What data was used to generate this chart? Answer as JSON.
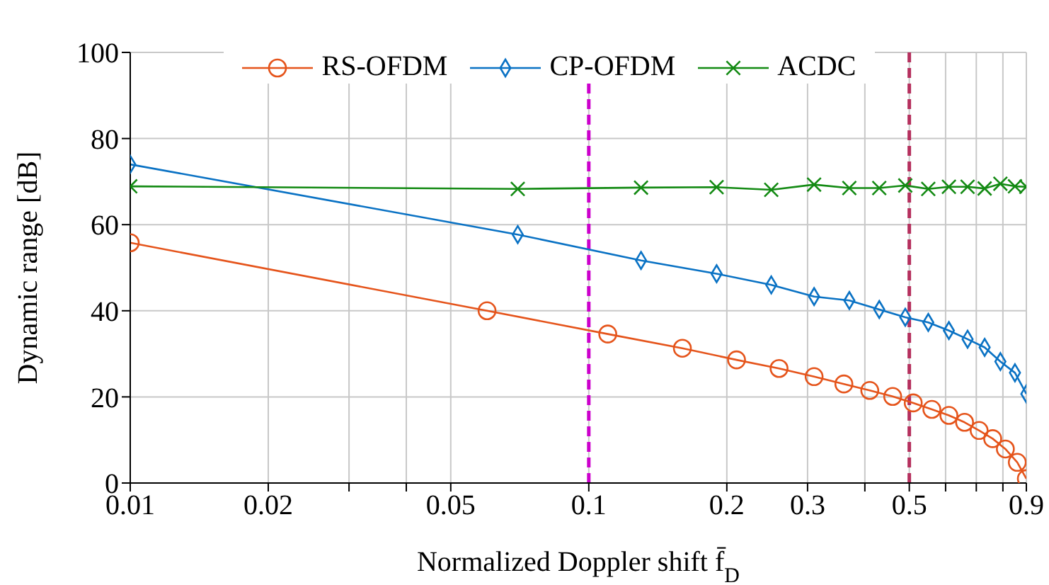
{
  "chart_data": {
    "type": "line",
    "xlabel": "Normalized Doppler shift f̄$_{D}$",
    "ylabel": "Dynamic range [dB]",
    "series": [
      {
        "name": "RS-OFDM",
        "color": "#e5541b",
        "marker": "circle",
        "x": [
          0.01,
          0.06,
          0.11,
          0.16,
          0.21,
          0.26,
          0.31,
          0.36,
          0.41,
          0.46,
          0.51,
          0.56,
          0.61,
          0.66,
          0.71,
          0.76,
          0.81,
          0.86,
          0.9
        ],
        "values": [
          55.8,
          40,
          34.6,
          31.3,
          28.6,
          26.6,
          24.7,
          23,
          21.5,
          20.1,
          18.6,
          17.1,
          15.7,
          14.1,
          12.2,
          10.3,
          7.9,
          4.8,
          1
        ]
      },
      {
        "name": "CP-OFDM",
        "color": "#0a72c4",
        "marker": "diamond",
        "x": [
          0.01,
          0.07,
          0.13,
          0.19,
          0.25,
          0.31,
          0.37,
          0.43,
          0.49,
          0.55,
          0.61,
          0.67,
          0.73,
          0.79,
          0.85,
          0.9
        ],
        "values": [
          74,
          57.7,
          51.7,
          48.6,
          46,
          43.3,
          42.4,
          40.3,
          38.5,
          37.3,
          35.4,
          33.4,
          31.5,
          28.2,
          25.6,
          20.7
        ]
      },
      {
        "name": "ACDC",
        "color": "#138a13",
        "marker": "cross",
        "x": [
          0.01,
          0.07,
          0.13,
          0.19,
          0.25,
          0.31,
          0.37,
          0.43,
          0.49,
          0.55,
          0.61,
          0.67,
          0.73,
          0.79,
          0.85,
          0.9
        ],
        "values": [
          68.9,
          68.3,
          68.6,
          68.7,
          68.1,
          69.3,
          68.5,
          68.5,
          69.1,
          68.3,
          68.8,
          68.8,
          68.4,
          69.5,
          68.9,
          68.8
        ]
      }
    ],
    "log": "x",
    "xlim": [
      0.01,
      0.9
    ],
    "ylim": [
      0,
      100
    ],
    "xticks": [
      0.01,
      0.02,
      {
        "value": 0.03,
        "label": null
      },
      {
        "value": 0.04,
        "label": null
      },
      0.05,
      0.1,
      0.2,
      0.3,
      {
        "value": 0.4,
        "label": null
      },
      0.5,
      {
        "value": 0.6,
        "label": null
      },
      {
        "value": 0.7,
        "label": null
      },
      {
        "value": 0.8,
        "label": null
      },
      0.9
    ],
    "yticks": [
      0,
      20,
      40,
      60,
      80,
      100
    ],
    "ref_lines": [
      {
        "axis": "x",
        "value": 0.1,
        "color": "#cc00cc",
        "line_style": "dashed"
      },
      {
        "axis": "x",
        "value": 0.5,
        "color": "#b5305e",
        "line_style": "dashed"
      }
    ],
    "grid": true,
    "legend": "top"
  }
}
